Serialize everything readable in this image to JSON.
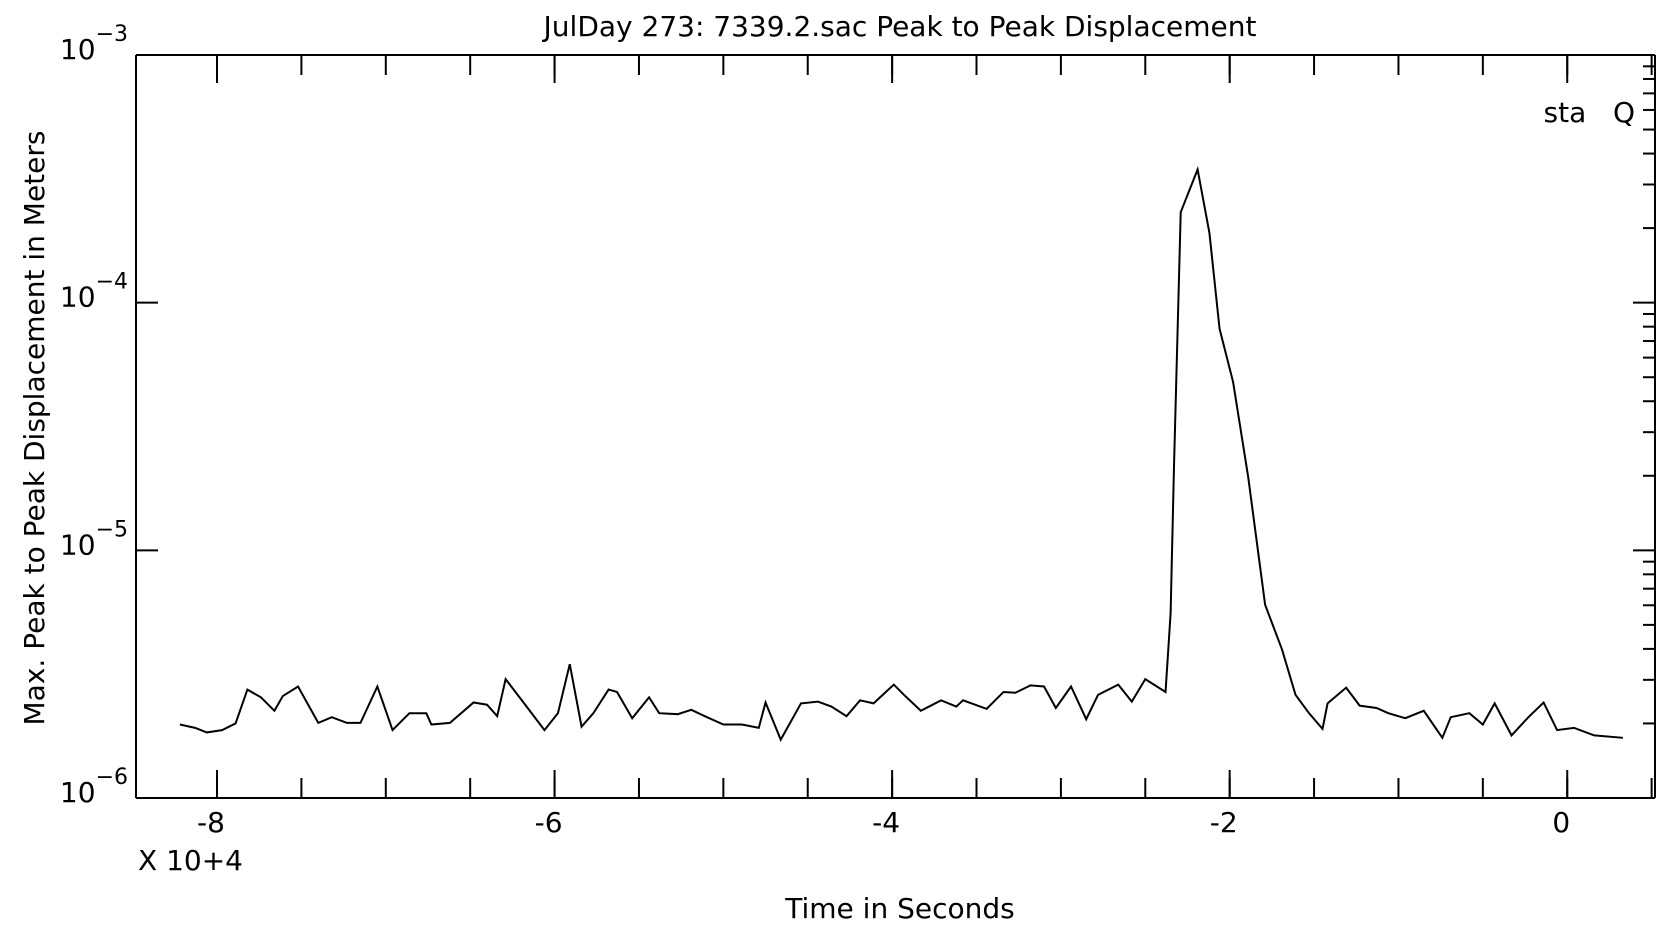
{
  "chart_data": {
    "type": "line",
    "title": "JulDay 273: 7339.2.sac Peak to Peak Displacement",
    "x_label": "Time in Seconds",
    "y_label": "Max. Peak to Peak Displacement in Meters",
    "x_multiplier": "X 10+4",
    "annotation": "sta   Q",
    "log_y": true,
    "color": "#000000",
    "xlim": [
      -8.48,
      0.52
    ],
    "xticks": [
      -8,
      -6,
      -4,
      -2,
      0
    ],
    "minor_xticks": [
      -8,
      -7.5,
      -7,
      -6.5,
      -6,
      -5.5,
      -5,
      -4.5,
      -4,
      -3.5,
      -3,
      -2.5,
      -2,
      -1.5,
      -1,
      -0.5,
      0,
      0.5
    ],
    "ylim": [
      1e-06,
      0.001
    ],
    "yticks": [
      {
        "value": 1e-06,
        "label": "10",
        "exponent": "−6"
      },
      {
        "value": 1e-05,
        "label": "10",
        "exponent": "−5"
      },
      {
        "value": 0.0001,
        "label": "10",
        "exponent": "−4"
      },
      {
        "value": 0.001,
        "label": "10",
        "exponent": "−3"
      }
    ],
    "x": [
      -8.22,
      -8.13,
      -8.06,
      -7.97,
      -7.89,
      -7.82,
      -7.74,
      -7.66,
      -7.61,
      -7.52,
      -7.4,
      -7.32,
      -7.23,
      -7.15,
      -7.05,
      -6.96,
      -6.86,
      -6.76,
      -6.73,
      -6.62,
      -6.48,
      -6.4,
      -6.34,
      -6.29,
      -6.17,
      -6.06,
      -5.98,
      -5.91,
      -5.84,
      -5.77,
      -5.68,
      -5.63,
      -5.54,
      -5.44,
      -5.38,
      -5.27,
      -5.19,
      -5.11,
      -5.0,
      -4.89,
      -4.79,
      -4.75,
      -4.66,
      -4.54,
      -4.44,
      -4.36,
      -4.27,
      -4.19,
      -4.11,
      -3.99,
      -3.93,
      -3.83,
      -3.71,
      -3.62,
      -3.58,
      -3.44,
      -3.34,
      -3.27,
      -3.18,
      -3.1,
      -3.03,
      -2.94,
      -2.85,
      -2.78,
      -2.66,
      -2.58,
      -2.5,
      -2.38,
      -2.35,
      -2.33,
      -2.29,
      -2.19,
      -2.12,
      -2.06,
      -1.98,
      -1.89,
      -1.79,
      -1.69,
      -1.61,
      -1.53,
      -1.45,
      -1.42,
      -1.31,
      -1.23,
      -1.13,
      -1.06,
      -0.96,
      -0.85,
      -0.74,
      -0.69,
      -0.58,
      -0.5,
      -0.43,
      -0.33,
      -0.23,
      -0.14,
      -0.06,
      0.04,
      0.16,
      0.33
    ],
    "values": [
      1.98e-06,
      1.92e-06,
      1.84e-06,
      1.88e-06,
      2e-06,
      2.74e-06,
      2.55e-06,
      2.25e-06,
      2.58e-06,
      2.82e-06,
      2.01e-06,
      2.12e-06,
      2.01e-06,
      2.01e-06,
      2.82e-06,
      1.88e-06,
      2.2e-06,
      2.2e-06,
      1.98e-06,
      2.01e-06,
      2.43e-06,
      2.38e-06,
      2.14e-06,
      3.02e-06,
      2.36e-06,
      1.88e-06,
      2.2e-06,
      3.47e-06,
      1.94e-06,
      2.2e-06,
      2.74e-06,
      2.68e-06,
      2.1e-06,
      2.55e-06,
      2.2e-06,
      2.18e-06,
      2.27e-06,
      2.14e-06,
      1.98e-06,
      1.98e-06,
      1.92e-06,
      2.43e-06,
      1.72e-06,
      2.41e-06,
      2.45e-06,
      2.34e-06,
      2.14e-06,
      2.48e-06,
      2.41e-06,
      2.87e-06,
      2.61e-06,
      2.25e-06,
      2.48e-06,
      2.34e-06,
      2.48e-06,
      2.29e-06,
      2.68e-06,
      2.66e-06,
      2.85e-06,
      2.82e-06,
      2.31e-06,
      2.82e-06,
      2.08e-06,
      2.61e-06,
      2.87e-06,
      2.45e-06,
      3.02e-06,
      2.68e-06,
      5.57e-06,
      2.17e-05,
      0.000232,
      0.000345,
      0.000191,
      7.85e-05,
      4.79e-05,
      1.97e-05,
      6.03e-06,
      3.98e-06,
      2.61e-06,
      2.2e-06,
      1.9e-06,
      2.41e-06,
      2.79e-06,
      2.36e-06,
      2.31e-06,
      2.2e-06,
      2.1e-06,
      2.25e-06,
      1.75e-06,
      2.12e-06,
      2.2e-06,
      1.98e-06,
      2.41e-06,
      1.79e-06,
      2.12e-06,
      2.43e-06,
      1.88e-06,
      1.92e-06,
      1.79e-06,
      1.75e-06
    ]
  }
}
